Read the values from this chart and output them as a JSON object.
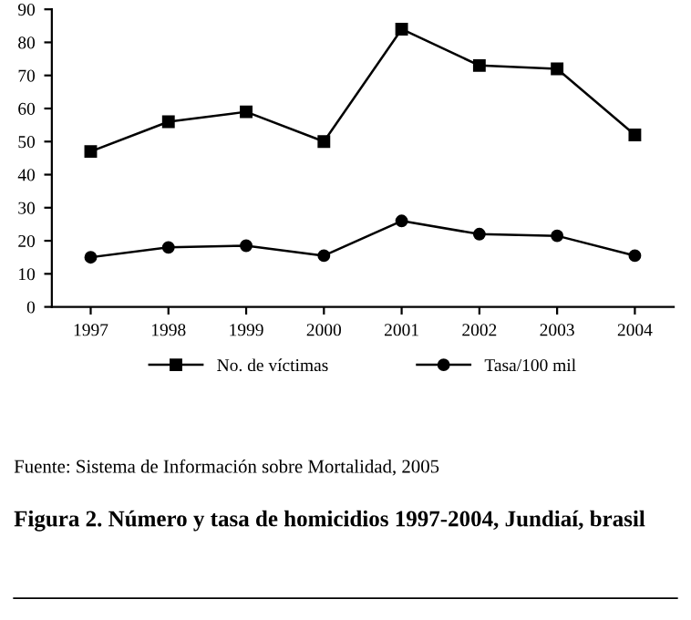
{
  "chart_data": {
    "type": "line",
    "categories": [
      "1997",
      "1998",
      "1999",
      "2000",
      "2001",
      "2002",
      "2003",
      "2004"
    ],
    "series": [
      {
        "name": "No. de víctimas",
        "color": "#000000",
        "marker": "square",
        "values": [
          47,
          56,
          59,
          50,
          84,
          73,
          72,
          52
        ]
      },
      {
        "name": "Tasa/100 mil",
        "color": "#000000",
        "marker": "circle",
        "values": [
          15,
          18,
          18.5,
          15.5,
          26,
          22,
          21.5,
          15.5
        ]
      }
    ],
    "ylim": [
      0,
      90
    ],
    "yticks": [
      0,
      10,
      20,
      30,
      40,
      50,
      60,
      70,
      80,
      90
    ],
    "grid": false,
    "legend": "bottom",
    "line_style": "solid",
    "title": "Figura 2. Número y tasa de homicidios 1997-2004, Jundiaí, brasil",
    "annotations": [
      "Fuente: Sistema de Información sobre Mortalidad, 2005"
    ]
  }
}
